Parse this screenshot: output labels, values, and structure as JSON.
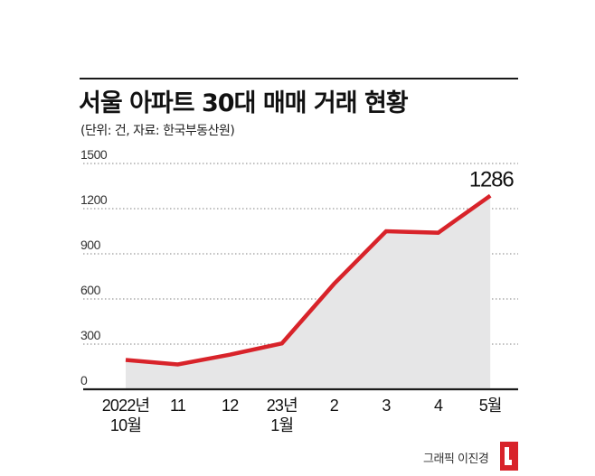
{
  "header": {
    "title": "서울 아파트 30대 매매 거래 현황",
    "subtitle": "(단위: 건, 자료: 한국부동산원)"
  },
  "credit": "그래픽 이진경",
  "colors": {
    "line": "#d8232a",
    "area": "#e6e6e7",
    "grid": "#9a9a9a",
    "axis": "#1a1a1a",
    "logo": "#d8232a"
  },
  "chart_data": {
    "type": "area",
    "title": "서울 아파트 30대 매매 거래 현황",
    "subtitle": "(단위: 건, 자료: 한국부동산원)",
    "xlabel": "",
    "ylabel": "",
    "categories": [
      [
        "2022년",
        "10월"
      ],
      [
        "11"
      ],
      [
        "12"
      ],
      [
        "23년",
        "1월"
      ],
      [
        "2"
      ],
      [
        "3"
      ],
      [
        "4"
      ],
      [
        "5월"
      ]
    ],
    "values": [
      195,
      165,
      230,
      305,
      700,
      1050,
      1040,
      1286
    ],
    "ylim": [
      0,
      1500
    ],
    "yticks": [
      0,
      300,
      600,
      900,
      1200,
      1500
    ],
    "grid": true,
    "annotations": [
      {
        "index": 7,
        "text": "1286"
      }
    ]
  }
}
